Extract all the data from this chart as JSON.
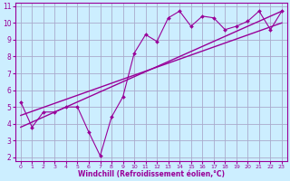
{
  "xlabel": "Windchill (Refroidissement éolien,°C)",
  "ylabel": "",
  "background_color": "#cceeff",
  "line_color": "#990099",
  "grid_color": "#aaaacc",
  "xlim": [
    -0.5,
    23.5
  ],
  "ylim": [
    1.8,
    11.2
  ],
  "xticks": [
    0,
    1,
    2,
    3,
    4,
    5,
    6,
    7,
    8,
    9,
    10,
    11,
    12,
    13,
    14,
    15,
    16,
    17,
    18,
    19,
    20,
    21,
    22,
    23
  ],
  "yticks": [
    2,
    3,
    4,
    5,
    6,
    7,
    8,
    9,
    10,
    11
  ],
  "scatter_x": [
    0,
    1,
    2,
    3,
    4,
    5,
    6,
    7,
    8,
    9,
    10,
    11,
    12,
    13,
    14,
    15,
    16,
    17,
    18,
    19,
    20,
    21,
    22,
    23
  ],
  "scatter_y": [
    5.3,
    3.8,
    4.7,
    4.7,
    5.0,
    5.0,
    3.5,
    2.1,
    4.4,
    5.6,
    8.2,
    9.3,
    8.9,
    10.3,
    10.7,
    9.8,
    10.4,
    10.3,
    9.6,
    9.8,
    10.1,
    10.7,
    9.6,
    10.7
  ],
  "trend1_x": [
    0,
    23
  ],
  "trend1_y": [
    4.5,
    10.0
  ],
  "trend2_x": [
    0,
    23
  ],
  "trend2_y": [
    3.8,
    10.7
  ]
}
